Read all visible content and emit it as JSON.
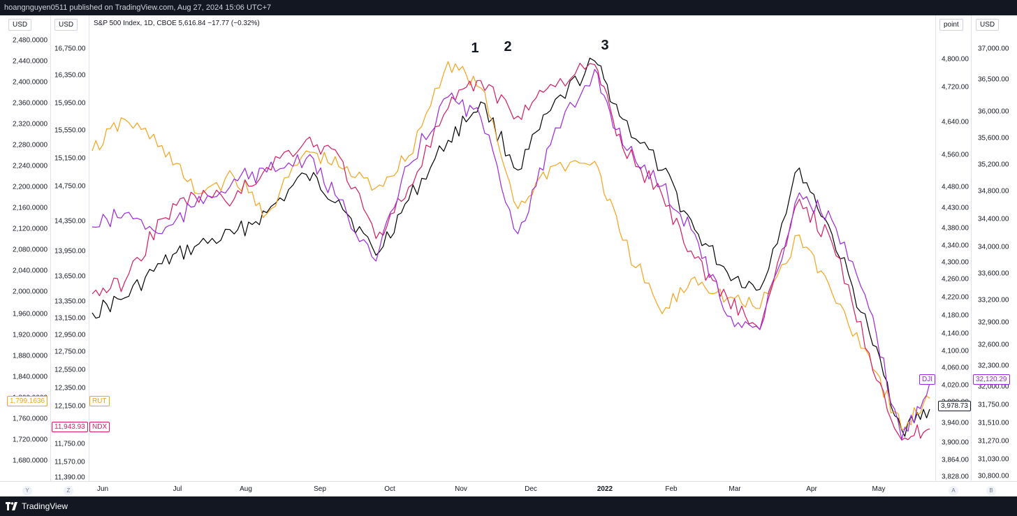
{
  "header": {
    "published_text": "hoangnguyen0511 published on TradingView.com, Aug 27, 2024 15:06 UTC+7"
  },
  "footer": {
    "logo_text": "TradingView"
  },
  "legend": {
    "text": "S&P 500 Index, 1D, CBOE  5,616.84  −17.77 (−0.32%)"
  },
  "axes": {
    "left_outer": {
      "unit": "USD",
      "ticks": [
        "2,480.0000",
        "2,440.0000",
        "2,400.0000",
        "2,360.0000",
        "2,320.0000",
        "2,280.0000",
        "2,240.0000",
        "2,200.0000",
        "2,160.0000",
        "2,120.0000",
        "2,080.0000",
        "2,040.0000",
        "2,000.0000",
        "1,960.0000",
        "1,920.0000",
        "1,880.0000",
        "1,840.0000",
        "1,800.0000",
        "1,760.0000",
        "1,720.0000",
        "1,680.0000"
      ]
    },
    "left_inner": {
      "unit": "USD",
      "ticks": [
        "16,750.00",
        "16,350.00",
        "15,950.00",
        "15,550.00",
        "15,150.00",
        "14,750.00",
        "14,350.00",
        "13,950.00",
        "13,650.00",
        "13,350.00",
        "13,150.00",
        "12,950.00",
        "12,750.00",
        "12,550.00",
        "12,350.00",
        "12,150.00",
        "11,950.00",
        "11,750.00",
        "11,570.00",
        "11,390.00"
      ]
    },
    "right_inner": {
      "unit": "point",
      "ticks": [
        "4,800.00",
        "4,720.00",
        "4,640.00",
        "4,560.00",
        "4,480.00",
        "4,430.00",
        "4,380.00",
        "4,340.00",
        "4,300.00",
        "4,260.00",
        "4,220.00",
        "4,180.00",
        "4,140.00",
        "4,100.00",
        "4,060.00",
        "4,020.00",
        "3,980.00",
        "3,940.00",
        "3,900.00",
        "3,864.00",
        "3,828.00"
      ]
    },
    "right_outer": {
      "unit": "USD",
      "ticks": [
        "37,000.00",
        "36,500.00",
        "36,000.00",
        "35,600.00",
        "35,200.00",
        "34,800.00",
        "34,400.00",
        "34,000.00",
        "33,600.00",
        "33,200.00",
        "32,900.00",
        "32,600.00",
        "32,300.00",
        "32,000.00",
        "31,750.00",
        "31,510.00",
        "31,270.00",
        "31,030.00",
        "30,800.00"
      ]
    },
    "x_ticks": [
      {
        "label": "Jun",
        "bold": false
      },
      {
        "label": "Jul",
        "bold": false
      },
      {
        "label": "Aug",
        "bold": false
      },
      {
        "label": "Sep",
        "bold": false
      },
      {
        "label": "Oct",
        "bold": false
      },
      {
        "label": "Nov",
        "bold": false
      },
      {
        "label": "Dec",
        "bold": false
      },
      {
        "label": "2022",
        "bold": true
      },
      {
        "label": "Feb",
        "bold": false
      },
      {
        "label": "Mar",
        "bold": false
      },
      {
        "label": "Apr",
        "bold": false
      },
      {
        "label": "May",
        "bold": false
      }
    ],
    "corners": {
      "left_outer": "Y",
      "left_inner": "Z",
      "right_inner": "A",
      "right_outer": "B"
    }
  },
  "price_tags": {
    "rut_value": "1,799.1636",
    "rut_name": "RUT",
    "ndx_value": "11,943.93",
    "ndx_name": "NDX",
    "dji_value": "32,120.29",
    "dji_name": "DJI",
    "spx_value": "3,978.73"
  },
  "annotations": {
    "peak1": "1",
    "peak2": "2",
    "peak3": "3"
  },
  "colors": {
    "SPX": "#000000",
    "RUT": "#f7a21b",
    "NDX": "#d81b60",
    "DJI": "#9c27e0"
  },
  "chart_data": {
    "type": "line",
    "x_range": [
      "2021-06-01",
      "2022-05-27"
    ],
    "series": [
      {
        "name": "SPX",
        "color": "#000000",
        "x": [
          "2021-06-01",
          "2021-06-15",
          "2021-07-01",
          "2021-07-15",
          "2021-08-01",
          "2021-08-15",
          "2021-09-01",
          "2021-09-15",
          "2021-10-01",
          "2021-10-15",
          "2021-11-01",
          "2021-11-15",
          "2021-12-01",
          "2021-12-15",
          "2022-01-03",
          "2022-01-15",
          "2022-02-01",
          "2022-02-15",
          "2022-03-01",
          "2022-03-15",
          "2022-04-01",
          "2022-04-15",
          "2022-05-01",
          "2022-05-15",
          "2022-05-27"
        ],
        "values": [
          4205,
          4240,
          4320,
          4360,
          4390,
          4440,
          4530,
          4470,
          4340,
          4470,
          4610,
          4700,
          4540,
          4680,
          4796,
          4660,
          4540,
          4400,
          4300,
          4260,
          4545,
          4390,
          4160,
          3930,
          3978.73
        ]
      },
      {
        "name": "RUT",
        "color": "#f7a21b",
        "x": [
          "2021-06-01",
          "2021-06-15",
          "2021-07-01",
          "2021-07-15",
          "2021-08-01",
          "2021-08-15",
          "2021-09-01",
          "2021-09-15",
          "2021-10-01",
          "2021-10-15",
          "2021-11-01",
          "2021-11-15",
          "2021-12-01",
          "2021-12-15",
          "2022-01-03",
          "2022-01-15",
          "2022-02-01",
          "2022-02-15",
          "2022-03-01",
          "2022-03-15",
          "2022-04-01",
          "2022-04-15",
          "2022-05-01",
          "2022-05-15",
          "2022-05-27"
        ],
        "values": [
          2270,
          2330,
          2280,
          2190,
          2220,
          2150,
          2270,
          2240,
          2200,
          2260,
          2440,
          2390,
          2160,
          2240,
          2250,
          2100,
          1960,
          2030,
          1990,
          1970,
          2110,
          2000,
          1880,
          1740,
          1799.1636
        ]
      },
      {
        "name": "NDX",
        "color": "#d81b60",
        "x": [
          "2021-06-01",
          "2021-06-15",
          "2021-07-01",
          "2021-07-15",
          "2021-08-01",
          "2021-08-15",
          "2021-09-01",
          "2021-09-15",
          "2021-10-01",
          "2021-10-15",
          "2021-11-01",
          "2021-11-15",
          "2021-12-01",
          "2021-12-15",
          "2022-01-03",
          "2022-01-15",
          "2022-02-01",
          "2022-02-15",
          "2022-03-01",
          "2022-03-15",
          "2022-04-01",
          "2022-04-15",
          "2022-05-01",
          "2022-05-15",
          "2022-05-27"
        ],
        "values": [
          13650,
          13800,
          14600,
          14900,
          14850,
          15250,
          15600,
          15400,
          14350,
          15000,
          16000,
          16350,
          15900,
          16300,
          16550,
          15500,
          14900,
          14100,
          13600,
          13200,
          14850,
          14300,
          12900,
          11800,
          11943.93
        ]
      },
      {
        "name": "DJI",
        "color": "#9c27e0",
        "x": [
          "2021-06-01",
          "2021-06-15",
          "2021-07-01",
          "2021-07-15",
          "2021-08-01",
          "2021-08-15",
          "2021-09-01",
          "2021-09-15",
          "2021-10-01",
          "2021-10-15",
          "2021-11-01",
          "2021-11-15",
          "2021-12-01",
          "2021-12-15",
          "2022-01-03",
          "2022-01-15",
          "2022-02-01",
          "2022-02-15",
          "2022-03-01",
          "2022-03-15",
          "2022-04-01",
          "2022-04-15",
          "2022-05-01",
          "2022-05-15",
          "2022-05-27"
        ],
        "values": [
          34400,
          34600,
          34300,
          34700,
          35100,
          35200,
          35400,
          34800,
          33900,
          35300,
          36300,
          36000,
          34300,
          35600,
          36700,
          35600,
          35000,
          34300,
          33100,
          32900,
          34900,
          34500,
          33200,
          31300,
          32120.29
        ]
      }
    ]
  }
}
